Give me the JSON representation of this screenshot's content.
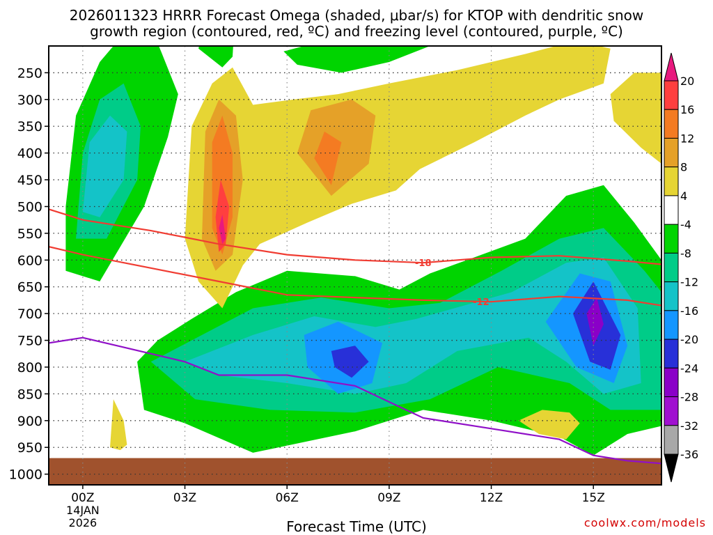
{
  "title_line1": "2026011323 HRRR Forecast Omega (shaded, μbar/s) for KTOP with dendritic snow",
  "title_line2": "growth region (contoured, red, ºC) and freezing level (contoured, purple, ºC)",
  "credit": "coolwx.com/models",
  "chart_data": {
    "type": "contour",
    "xlabel": "Forecast Time (UTC)",
    "x_ticks": [
      {
        "hour": 0,
        "label": "00Z",
        "sub": [
          "14JAN",
          "2026"
        ]
      },
      {
        "hour": 3,
        "label": "03Z"
      },
      {
        "hour": 6,
        "label": "06Z"
      },
      {
        "hour": 9,
        "label": "09Z"
      },
      {
        "hour": 12,
        "label": "12Z"
      },
      {
        "hour": 15,
        "label": "15Z"
      }
    ],
    "xlim": [
      -1,
      17
    ],
    "y_ticks": [
      250,
      300,
      350,
      400,
      450,
      500,
      550,
      600,
      650,
      700,
      750,
      800,
      850,
      900,
      950,
      1000
    ],
    "ylabel": "",
    "ylim": [
      200,
      1020
    ],
    "colorbar": {
      "levels": [
        20,
        16,
        12,
        8,
        4,
        -4,
        -8,
        -12,
        -16,
        -20,
        -24,
        -28,
        -32,
        -36
      ],
      "colors": [
        "#ff3f3f",
        "#f47b22",
        "#e5a128",
        "#e6d534",
        "#ffffff",
        "#00d400",
        "#00cc88",
        "#14c3c8",
        "#1496ff",
        "#2830d8",
        "#8a00c8",
        "#a010d0",
        "#a8a8a8"
      ],
      "top_color": "#e8197e",
      "bottom_color": "#000000"
    },
    "contours": [
      {
        "name": "-18",
        "color": "#f03c32",
        "label": "-18",
        "label_hour": 10,
        "points": [
          [
            -1,
            505
          ],
          [
            0,
            525
          ],
          [
            2,
            545
          ],
          [
            4,
            570
          ],
          [
            6,
            590
          ],
          [
            8,
            600
          ],
          [
            10,
            605
          ],
          [
            12,
            595
          ],
          [
            14,
            592
          ],
          [
            16,
            602
          ],
          [
            17,
            608
          ]
        ]
      },
      {
        "name": "-12",
        "color": "#f03c32",
        "label": "-12",
        "label_hour": 11.7,
        "points": [
          [
            -1,
            575
          ],
          [
            0,
            590
          ],
          [
            2,
            615
          ],
          [
            4,
            640
          ],
          [
            6,
            665
          ],
          [
            8,
            670
          ],
          [
            10,
            675
          ],
          [
            12,
            678
          ],
          [
            14,
            668
          ],
          [
            16,
            675
          ],
          [
            17,
            685
          ]
        ]
      },
      {
        "name": "freezing level",
        "color": "#9010c8",
        "points": [
          [
            -1,
            755
          ],
          [
            0,
            745
          ],
          [
            1,
            760
          ],
          [
            3,
            790
          ],
          [
            4,
            815
          ],
          [
            6,
            815
          ],
          [
            8,
            835
          ],
          [
            10,
            895
          ],
          [
            12,
            915
          ],
          [
            14,
            935
          ],
          [
            15,
            965
          ],
          [
            16,
            975
          ],
          [
            17,
            980
          ]
        ]
      }
    ],
    "omega_regions": [
      {
        "level": -4,
        "color": "#00d400",
        "points": [
          [
            -0.5,
            620
          ],
          [
            -0.5,
            500
          ],
          [
            -0.2,
            330
          ],
          [
            0.5,
            230
          ],
          [
            1.3,
            170
          ],
          [
            1.8,
            135
          ],
          [
            2.3,
            210
          ],
          [
            2.8,
            290
          ],
          [
            2.5,
            370
          ],
          [
            1.8,
            500
          ],
          [
            0.5,
            640
          ]
        ]
      },
      {
        "level": -8,
        "color": "#00cc88",
        "points": [
          [
            -0.2,
            560
          ],
          [
            0,
            400
          ],
          [
            0.5,
            300
          ],
          [
            1.2,
            270
          ],
          [
            1.7,
            350
          ],
          [
            1.6,
            450
          ],
          [
            0.7,
            560
          ]
        ]
      },
      {
        "level": -12,
        "color": "#14c3c8",
        "points": [
          [
            0,
            510
          ],
          [
            0.2,
            380
          ],
          [
            0.8,
            330
          ],
          [
            1.3,
            360
          ],
          [
            1.2,
            450
          ],
          [
            0.5,
            520
          ]
        ]
      },
      {
        "level": -4,
        "color": "#00d400",
        "points": [
          [
            1.6,
            790
          ],
          [
            2.2,
            750
          ],
          [
            3.2,
            710
          ],
          [
            4.5,
            660
          ],
          [
            6,
            620
          ],
          [
            8,
            630
          ],
          [
            9.3,
            655
          ],
          [
            10.2,
            625
          ],
          [
            11.5,
            595
          ],
          [
            13,
            560
          ],
          [
            14.2,
            480
          ],
          [
            15.3,
            460
          ],
          [
            16.2,
            530
          ],
          [
            17,
            600
          ],
          [
            17,
            910
          ],
          [
            16,
            925
          ],
          [
            15,
            965
          ],
          [
            14,
            930
          ],
          [
            12,
            900
          ],
          [
            10,
            880
          ],
          [
            8,
            920
          ],
          [
            5,
            960
          ],
          [
            3,
            905
          ],
          [
            1.8,
            880
          ]
        ]
      },
      {
        "level": -8,
        "color": "#00cc88",
        "points": [
          [
            2,
            790
          ],
          [
            3.5,
            740
          ],
          [
            5,
            690
          ],
          [
            7,
            670
          ],
          [
            9,
            690
          ],
          [
            10.5,
            680
          ],
          [
            12.3,
            620
          ],
          [
            14,
            560
          ],
          [
            15.3,
            540
          ],
          [
            16.5,
            620
          ],
          [
            17,
            660
          ],
          [
            17,
            880
          ],
          [
            15.5,
            880
          ],
          [
            14.3,
            830
          ],
          [
            12.2,
            800
          ],
          [
            10.2,
            860
          ],
          [
            8,
            885
          ],
          [
            5.5,
            880
          ],
          [
            3.3,
            860
          ]
        ]
      },
      {
        "level": -12,
        "color": "#14c3c8",
        "points": [
          [
            3,
            790
          ],
          [
            5,
            740
          ],
          [
            6.8,
            705
          ],
          [
            8.6,
            725
          ],
          [
            9.8,
            710
          ],
          [
            12.6,
            660
          ],
          [
            14.2,
            605
          ],
          [
            15.3,
            595
          ],
          [
            16.3,
            690
          ],
          [
            16.4,
            830
          ],
          [
            15.3,
            850
          ],
          [
            14.2,
            790
          ],
          [
            13.1,
            745
          ],
          [
            11,
            770
          ],
          [
            9.5,
            830
          ],
          [
            8,
            850
          ],
          [
            6,
            830
          ],
          [
            4,
            815
          ]
        ]
      },
      {
        "level": -16,
        "color": "#1496ff",
        "points": [
          [
            6.5,
            740
          ],
          [
            7.5,
            715
          ],
          [
            8.8,
            755
          ],
          [
            8.5,
            830
          ],
          [
            7.5,
            850
          ],
          [
            6.6,
            800
          ]
        ]
      },
      {
        "level": -16,
        "color": "#1496ff",
        "points": [
          [
            13.6,
            715
          ],
          [
            14.6,
            625
          ],
          [
            15.5,
            640
          ],
          [
            16,
            760
          ],
          [
            15.6,
            830
          ],
          [
            14.5,
            800
          ]
        ]
      },
      {
        "level": -20,
        "color": "#2830d8",
        "points": [
          [
            7.3,
            770
          ],
          [
            8,
            760
          ],
          [
            8.4,
            790
          ],
          [
            7.9,
            820
          ],
          [
            7.4,
            800
          ]
        ]
      },
      {
        "level": -20,
        "color": "#2830d8",
        "points": [
          [
            14.4,
            700
          ],
          [
            15,
            640
          ],
          [
            15.8,
            740
          ],
          [
            15.5,
            805
          ],
          [
            14.9,
            790
          ]
        ]
      },
      {
        "level": -24,
        "color": "#8a00c8",
        "points": [
          [
            14.8,
            700
          ],
          [
            15.1,
            670
          ],
          [
            15.3,
            720
          ],
          [
            15.0,
            760
          ]
        ]
      },
      {
        "level": -4,
        "color": "#00d400",
        "points": [
          [
            3.4,
            205
          ],
          [
            3.7,
            110
          ],
          [
            4.5,
            110
          ],
          [
            4.4,
            220
          ],
          [
            4.1,
            240
          ]
        ]
      },
      {
        "level": -4,
        "color": "#00d400",
        "points": [
          [
            5.9,
            210
          ],
          [
            6.8,
            195
          ],
          [
            8.3,
            155
          ],
          [
            9.6,
            150
          ],
          [
            11.1,
            130
          ],
          [
            12.4,
            110
          ],
          [
            14.2,
            95
          ],
          [
            12.3,
            155
          ],
          [
            10.2,
            200
          ],
          [
            9.0,
            230
          ],
          [
            7.6,
            250
          ],
          [
            6.3,
            235
          ]
        ]
      },
      {
        "level": 4,
        "color": "#e6d534",
        "points": [
          [
            3,
            560
          ],
          [
            3.2,
            350
          ],
          [
            3.8,
            270
          ],
          [
            4.4,
            240
          ],
          [
            5.0,
            310
          ],
          [
            6.2,
            300
          ],
          [
            7.5,
            290
          ],
          [
            9.0,
            270
          ],
          [
            11,
            245
          ],
          [
            13,
            215
          ],
          [
            14.5,
            190
          ],
          [
            15.5,
            205
          ],
          [
            15.3,
            270
          ],
          [
            14,
            300
          ],
          [
            13,
            330
          ],
          [
            11.5,
            380
          ],
          [
            9.9,
            430
          ],
          [
            9.2,
            470
          ],
          [
            7.9,
            495
          ],
          [
            6.6,
            530
          ],
          [
            5.2,
            570
          ],
          [
            4.7,
            610
          ],
          [
            4.1,
            690
          ],
          [
            3.4,
            640
          ]
        ]
      },
      {
        "level": 8,
        "color": "#e5a128",
        "points": [
          [
            3.5,
            560
          ],
          [
            3.6,
            360
          ],
          [
            4.0,
            300
          ],
          [
            4.5,
            330
          ],
          [
            4.7,
            450
          ],
          [
            4.4,
            590
          ],
          [
            3.9,
            620
          ]
        ]
      },
      {
        "level": 8,
        "color": "#e5a128",
        "points": [
          [
            6.3,
            400
          ],
          [
            6.7,
            320
          ],
          [
            7.9,
            300
          ],
          [
            8.6,
            330
          ],
          [
            8.4,
            420
          ],
          [
            7.3,
            480
          ]
        ]
      },
      {
        "level": 12,
        "color": "#f47b22",
        "points": [
          [
            3.8,
            540
          ],
          [
            3.8,
            380
          ],
          [
            4.1,
            330
          ],
          [
            4.4,
            400
          ],
          [
            4.4,
            520
          ],
          [
            4.1,
            590
          ]
        ]
      },
      {
        "level": 12,
        "color": "#f47b22",
        "points": [
          [
            6.8,
            410
          ],
          [
            7.1,
            360
          ],
          [
            7.6,
            380
          ],
          [
            7.3,
            460
          ]
        ]
      },
      {
        "level": 16,
        "color": "#ff3f3f",
        "points": [
          [
            3.9,
            520
          ],
          [
            4.05,
            450
          ],
          [
            4.3,
            500
          ],
          [
            4.2,
            570
          ],
          [
            4.0,
            585
          ]
        ]
      },
      {
        "level": 20,
        "color": "#e8197e",
        "points": [
          [
            4.0,
            540
          ],
          [
            4.1,
            515
          ],
          [
            4.2,
            560
          ],
          [
            4.1,
            570
          ]
        ]
      },
      {
        "level": 4,
        "color": "#e6d534",
        "points": [
          [
            15.5,
            290
          ],
          [
            16.2,
            250
          ],
          [
            17,
            250
          ],
          [
            17,
            420
          ],
          [
            16.4,
            390
          ],
          [
            15.6,
            340
          ]
        ]
      },
      {
        "level": 4,
        "color": "#e6d534",
        "points": [
          [
            0.8,
            950
          ],
          [
            0.9,
            860
          ],
          [
            1.2,
            900
          ],
          [
            1.3,
            945
          ],
          [
            1.1,
            955
          ]
        ]
      },
      {
        "level": 4,
        "color": "#e6d534",
        "points": [
          [
            12.8,
            900
          ],
          [
            13.5,
            880
          ],
          [
            14.3,
            885
          ],
          [
            14.6,
            905
          ],
          [
            14.2,
            935
          ],
          [
            13.4,
            925
          ]
        ]
      }
    ],
    "ground": {
      "color": "#a0522d",
      "top": 970
    }
  }
}
